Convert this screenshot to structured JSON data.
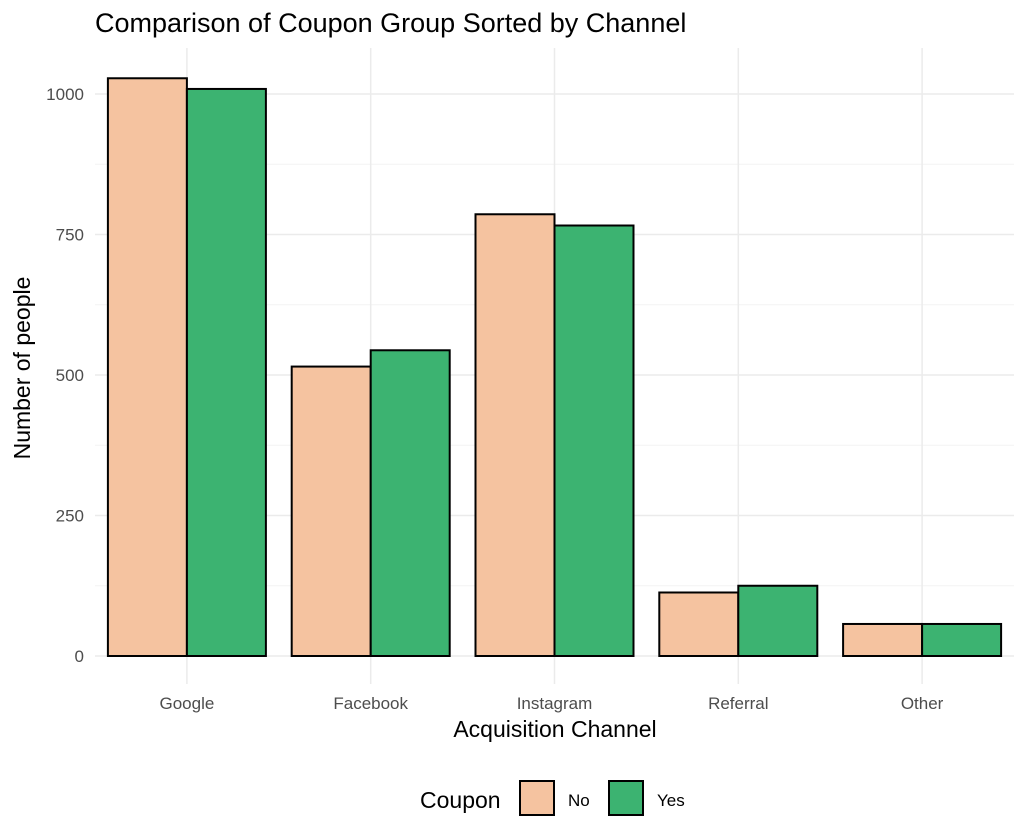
{
  "chart_data": {
    "type": "bar",
    "title": "Comparison of Coupon Group Sorted by Channel",
    "xlabel": "Acquisition Channel",
    "ylabel": "Number of people",
    "categories": [
      "Google",
      "Facebook",
      "Instagram",
      "Referral",
      "Other"
    ],
    "series": [
      {
        "name": "No",
        "color": "#f5c3a0",
        "values": [
          1028,
          515,
          786,
          113,
          57
        ]
      },
      {
        "name": "Yes",
        "color": "#3cb371",
        "values": [
          1009,
          544,
          766,
          125,
          57
        ]
      }
    ],
    "ylim": [
      0,
      1100
    ],
    "yticks": [
      0,
      250,
      500,
      750,
      1000
    ],
    "ytick_labels": [
      "0",
      "250",
      "500",
      "750",
      "1000"
    ],
    "grid": true,
    "legend": {
      "title": "Coupon",
      "placement": "bottom",
      "entries": [
        "No",
        "Yes"
      ]
    }
  }
}
